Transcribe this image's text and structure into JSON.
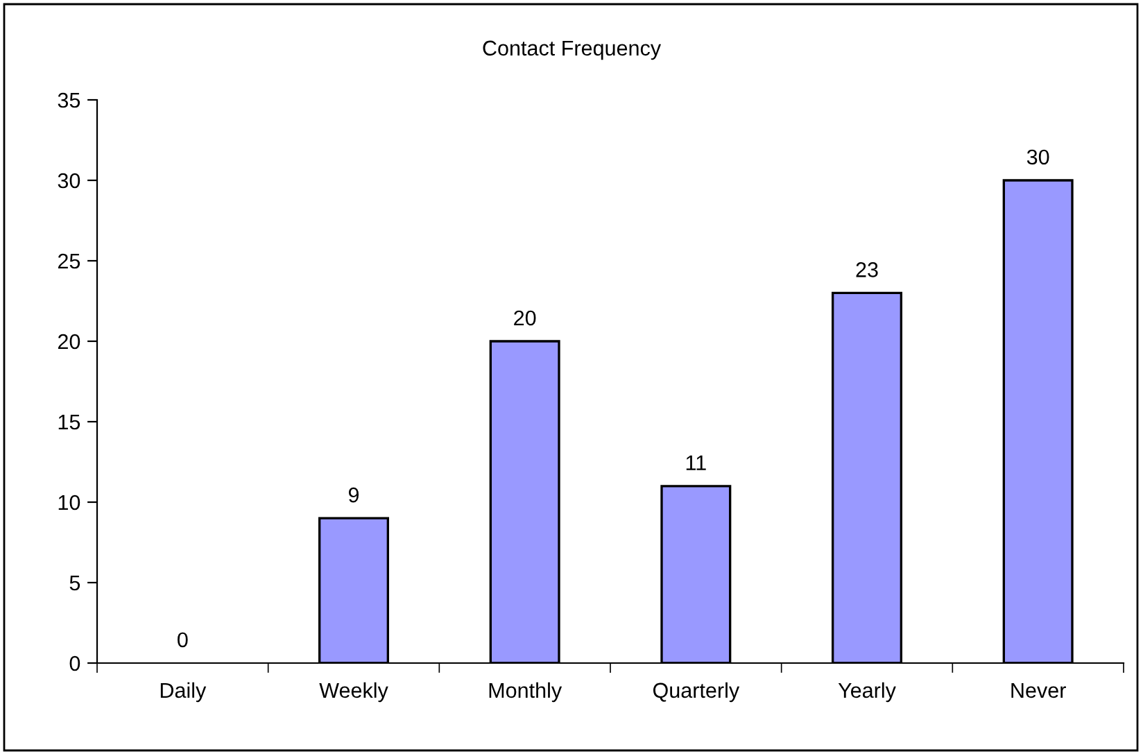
{
  "chart_data": {
    "type": "bar",
    "title": "Contact Frequency",
    "categories": [
      "Daily",
      "Weekly",
      "Monthly",
      "Quarterly",
      "Yearly",
      "Never"
    ],
    "values": [
      0,
      9,
      20,
      11,
      23,
      30
    ],
    "color": "#9999ff",
    "ylim": [
      0,
      35
    ],
    "yticks": [
      0,
      5,
      10,
      15,
      20,
      25,
      30,
      35
    ],
    "grid": false,
    "legend": false,
    "data_labels": true
  }
}
